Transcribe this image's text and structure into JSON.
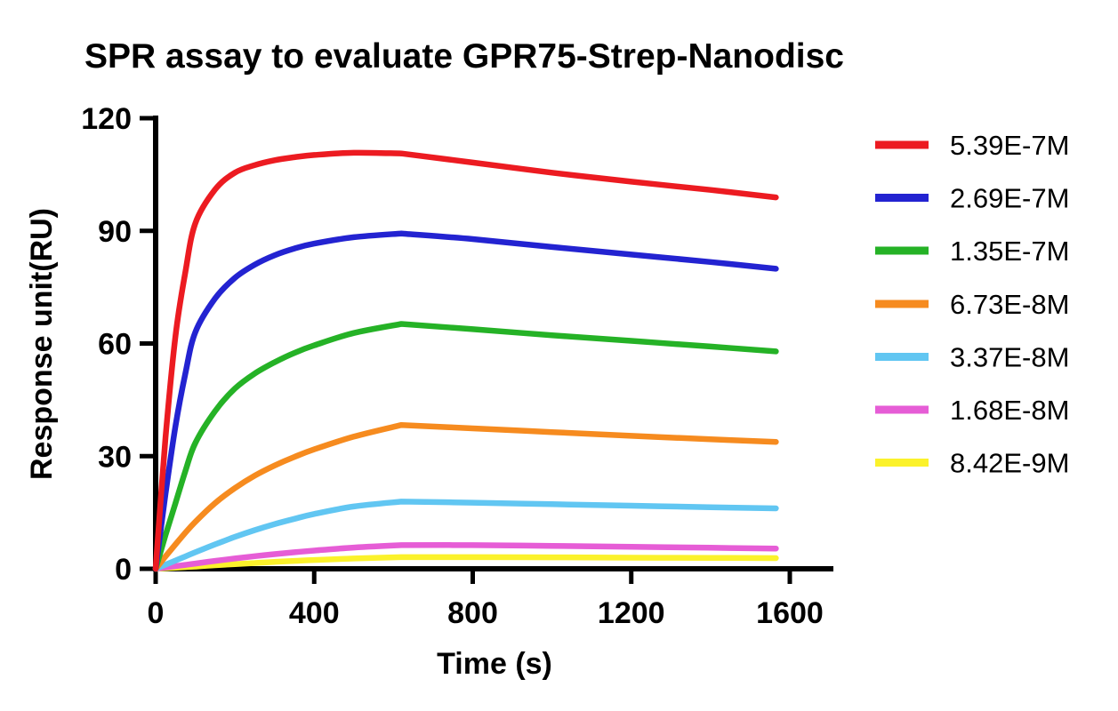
{
  "title": "SPR assay to evaluate GPR75-Strep-Nanodisc",
  "chart_data": {
    "type": "line",
    "title": "SPR assay to evaluate GPR75-Strep-Nanodisc",
    "xlabel": "Time (s)",
    "ylabel": "Response unit(RU)",
    "xlim": [
      0,
      1710
    ],
    "ylim": [
      0,
      120
    ],
    "x_ticks": [
      0,
      400,
      800,
      1200,
      1600
    ],
    "y_ticks": [
      0,
      30,
      60,
      90,
      120
    ],
    "grid": false,
    "legend_position": "right",
    "axis_color": "#000000",
    "injection_end_s": 620,
    "x": [
      0,
      25,
      50,
      75,
      100,
      150,
      200,
      250,
      300,
      350,
      400,
      500,
      620,
      800,
      1000,
      1200,
      1400,
      1565
    ],
    "series": [
      {
        "name": "5.39E-7M",
        "color": "#ec1b21",
        "values": [
          0,
          35,
          62,
          79,
          92,
          101,
          105.5,
          107.5,
          108.8,
          109.6,
          110.2,
          110.8,
          110.6,
          108.2,
          105.5,
          103.1,
          100.9,
          98.9
        ]
      },
      {
        "name": "2.69E-7M",
        "color": "#2323d1",
        "values": [
          0,
          20,
          38,
          52,
          63,
          72,
          77.5,
          81,
          83.5,
          85.3,
          86.6,
          88.3,
          89.3,
          87.8,
          85.7,
          83.7,
          81.7,
          79.9
        ]
      },
      {
        "name": "1.35E-7M",
        "color": "#25b226",
        "values": [
          0,
          9,
          17.5,
          26,
          33.5,
          42,
          48,
          52,
          55,
          57.5,
          59.5,
          62.8,
          65.2,
          63.8,
          62.2,
          60.7,
          59.2,
          57.9
        ]
      },
      {
        "name": "6.73E-8M",
        "color": "#f68b1f",
        "values": [
          0,
          3.3,
          6.5,
          9.6,
          12.5,
          17.5,
          21.5,
          24.8,
          27.5,
          29.8,
          31.8,
          35.2,
          38.3,
          37.4,
          36.4,
          35.4,
          34.5,
          33.8
        ]
      },
      {
        "name": "3.37E-8M",
        "color": "#61c6f2",
        "values": [
          0,
          1.1,
          2.2,
          3.3,
          4.4,
          6.5,
          8.5,
          10.3,
          11.9,
          13.3,
          14.6,
          16.6,
          17.9,
          17.6,
          17.2,
          16.8,
          16.4,
          16.1
        ]
      },
      {
        "name": "1.68E-8M",
        "color": "#e65dd6",
        "values": [
          0,
          0.35,
          0.7,
          1.05,
          1.4,
          2.1,
          2.75,
          3.35,
          3.9,
          4.4,
          4.85,
          5.65,
          6.3,
          6.3,
          6.1,
          5.85,
          5.6,
          5.4
        ]
      },
      {
        "name": "8.42E-9M",
        "color": "#fbf22b",
        "values": [
          0,
          0.15,
          0.3,
          0.45,
          0.6,
          0.95,
          1.25,
          1.55,
          1.85,
          2.1,
          2.35,
          2.75,
          3.1,
          3.1,
          3.05,
          2.95,
          2.9,
          2.85
        ]
      }
    ]
  }
}
